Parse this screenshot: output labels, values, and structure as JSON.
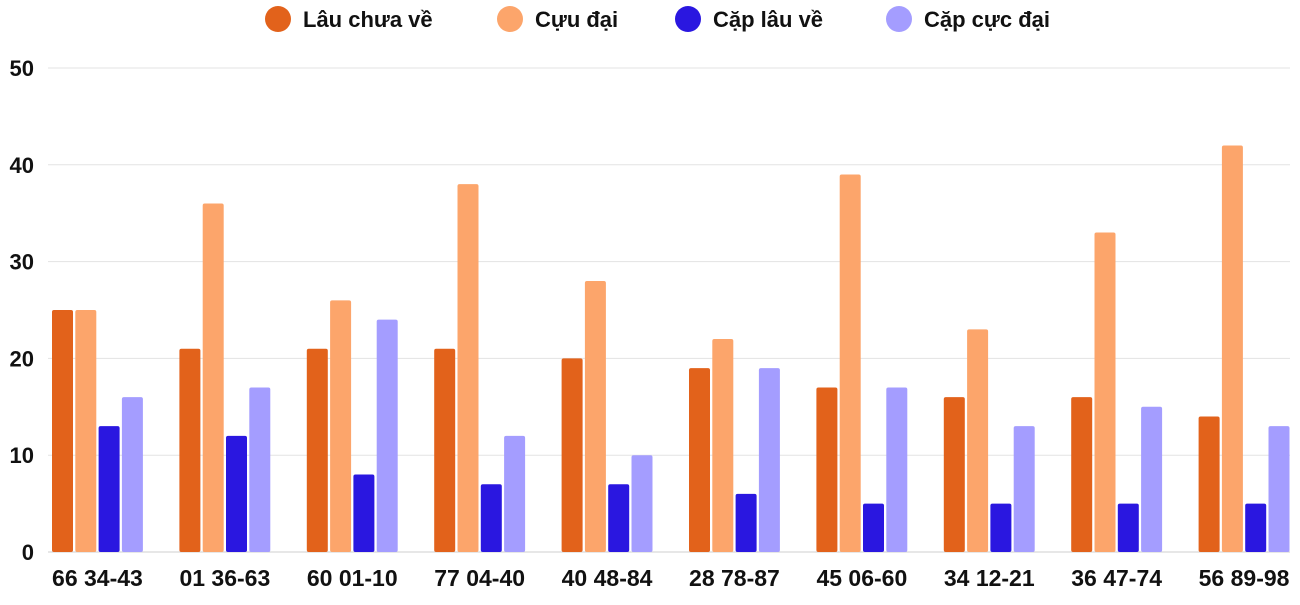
{
  "chart_data": {
    "type": "bar",
    "title": "",
    "xlabel": "",
    "ylabel": "",
    "ylim": [
      0,
      50
    ],
    "yticks": [
      0,
      10,
      20,
      30,
      40,
      50
    ],
    "grid": true,
    "legend_position": "top-center",
    "categories": [
      "66 34-43",
      "01 36-63",
      "60 01-10",
      "77 04-40",
      "40 48-84",
      "28 78-87",
      "45 06-60",
      "34 12-21",
      "36 47-74",
      "56 89-98"
    ],
    "series": [
      {
        "name": "Lâu chưa về",
        "color": "#e2621b",
        "values": [
          25,
          21,
          21,
          21,
          20,
          19,
          17,
          16,
          16,
          14
        ]
      },
      {
        "name": "Cựu đại",
        "color": "#fca56b",
        "values": [
          25,
          36,
          26,
          38,
          28,
          22,
          39,
          23,
          33,
          42
        ]
      },
      {
        "name": "Cặp lâu về",
        "color": "#2a17e0",
        "values": [
          13,
          12,
          8,
          7,
          7,
          6,
          5,
          5,
          5,
          5
        ]
      },
      {
        "name": "Cặp cực đại",
        "color": "#a49dff",
        "values": [
          16,
          17,
          24,
          12,
          10,
          19,
          17,
          13,
          15,
          13
        ]
      }
    ]
  }
}
